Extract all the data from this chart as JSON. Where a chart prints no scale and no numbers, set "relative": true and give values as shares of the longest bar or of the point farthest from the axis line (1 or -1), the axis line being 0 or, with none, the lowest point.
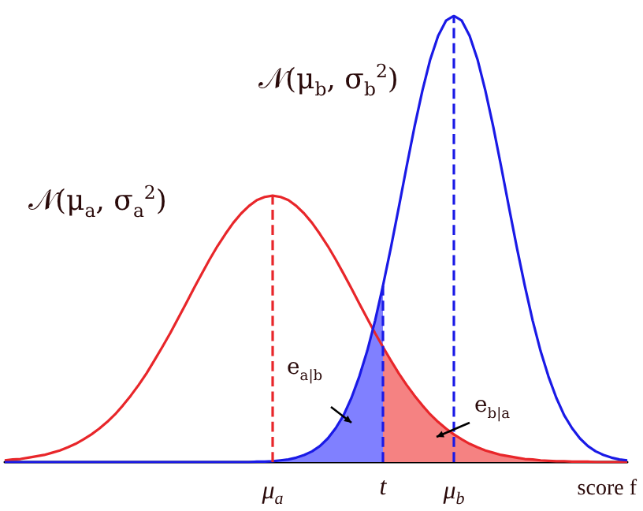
{
  "chart_data": {
    "type": "line",
    "relative": true,
    "categories": [
      null,
      null,
      null,
      null,
      null,
      null,
      null,
      null,
      null,
      null,
      null,
      null,
      null,
      null,
      null,
      null,
      null,
      null,
      null,
      null,
      null,
      null,
      null,
      null,
      null,
      null,
      null,
      null,
      null,
      null,
      null,
      null,
      null,
      null,
      "μ$_{a}$",
      null,
      null,
      null,
      null,
      null,
      null,
      null,
      null,
      null,
      null,
      null,
      null,
      null,
      "t",
      null,
      null,
      null,
      null,
      null,
      null,
      null,
      null,
      "μ$_{b}$",
      null,
      null,
      null,
      null,
      null,
      null,
      null,
      null,
      null,
      null,
      null,
      null,
      null,
      null,
      null,
      null,
      null,
      null,
      null,
      null,
      null,
      null
    ],
    "xlabel": "score f",
    "series": [
      {
        "color": "#e8262a",
        "values": [
          0.004,
          0.006,
          0.007,
          0.01,
          0.013,
          0.016,
          0.021,
          0.026,
          0.033,
          0.041,
          0.051,
          0.062,
          0.075,
          0.09,
          0.107,
          0.127,
          0.149,
          0.173,
          0.199,
          0.228,
          0.258,
          0.289,
          0.322,
          0.355,
          0.389,
          0.422,
          0.454,
          0.484,
          0.511,
          0.536,
          0.557,
          0.574,
          0.587,
          0.594,
          0.597,
          0.594,
          0.587,
          0.574,
          0.557,
          0.536,
          0.511,
          0.484,
          0.454,
          0.422,
          0.389,
          0.355,
          0.322,
          0.289,
          0.258,
          0.228,
          0.199,
          0.173,
          0.149,
          0.127,
          0.107,
          0.09,
          0.075,
          0.062,
          0.051,
          0.041,
          0.033,
          0.026,
          0.021,
          0.016,
          0.013,
          0.01,
          0.007,
          0.006,
          0.004,
          0.003,
          0.002,
          0.002,
          0.001,
          0.001,
          0.001,
          0,
          0,
          0,
          0,
          0
        ]
      },
      {
        "color": "#1a1ae6",
        "values": [
          0,
          0,
          0,
          0,
          0,
          0,
          0,
          0,
          0,
          0,
          0,
          0,
          0,
          0,
          0,
          0,
          0,
          0,
          0,
          0,
          0,
          0,
          0,
          0,
          0,
          0,
          0,
          0,
          0,
          0,
          0,
          0,
          0.001,
          0.001,
          0.002,
          0.004,
          0.006,
          0.01,
          0.016,
          0.024,
          0.036,
          0.053,
          0.076,
          0.105,
          0.144,
          0.192,
          0.249,
          0.317,
          0.395,
          0.48,
          0.57,
          0.662,
          0.751,
          0.832,
          0.902,
          0.955,
          0.989,
          1,
          0.989,
          0.955,
          0.902,
          0.832,
          0.751,
          0.662,
          0.57,
          0.48,
          0.395,
          0.317,
          0.249,
          0.192,
          0.144,
          0.105,
          0.076,
          0.053,
          0.036,
          0.024,
          0.016,
          0.01,
          0.006,
          0.004
        ]
      },
      {
        "type": "area",
        "color": "#8080ff",
        "values": [
          null,
          null,
          null,
          null,
          null,
          null,
          null,
          null,
          null,
          null,
          null,
          null,
          null,
          null,
          null,
          null,
          null,
          null,
          null,
          null,
          null,
          null,
          null,
          null,
          null,
          null,
          null,
          null,
          null,
          null,
          null,
          null,
          null,
          null,
          0.002,
          0.004,
          0.006,
          0.01,
          0.016,
          0.024,
          0.036,
          0.053,
          0.076,
          0.105,
          0.144,
          0.192,
          0.249,
          0.317,
          0.395,
          null,
          null,
          null,
          null,
          null,
          null,
          null,
          null,
          null,
          null,
          null,
          null,
          null,
          null,
          null,
          null,
          null,
          null,
          null,
          null,
          null,
          null,
          null,
          null,
          null,
          null,
          null,
          null,
          null,
          null,
          null
        ]
      },
      {
        "type": "area",
        "color": "#f58282",
        "values": [
          null,
          null,
          null,
          null,
          null,
          null,
          null,
          null,
          null,
          null,
          null,
          null,
          null,
          null,
          null,
          null,
          null,
          null,
          null,
          null,
          null,
          null,
          null,
          null,
          null,
          null,
          null,
          null,
          null,
          null,
          null,
          null,
          null,
          null,
          null,
          null,
          null,
          null,
          null,
          null,
          null,
          null,
          null,
          null,
          null,
          null,
          null,
          null,
          0.258,
          0.228,
          0.199,
          0.173,
          0.149,
          0.127,
          0.107,
          0.09,
          0.075,
          0.062,
          0.051,
          0.041,
          0.033,
          0.026,
          0.021,
          0.016,
          0.013,
          0.01,
          0.007,
          0.006,
          0.004,
          0.003,
          0.002,
          0.002,
          0.001,
          0.001,
          0.001,
          0,
          0,
          0,
          0,
          0
        ]
      }
    ],
    "ref_lines": [
      {
        "axis": "x",
        "value": "μ$_{a}$",
        "color": "#e8262a",
        "line_style": "dashed"
      },
      {
        "axis": "x",
        "value": "t",
        "color": "#1a1ae6",
        "line_style": "dashed"
      },
      {
        "axis": "x",
        "value": "μ$_{b}$",
        "color": "#1a1ae6",
        "line_style": "dashed"
      }
    ],
    "annotations": [
      "𝒩(μ$_{a}$, σ$_{a}$$^{2}$)",
      "𝒩(μ$_{b}$, σ$_{b}$$^{2}$)",
      "e$_{a|b}$",
      "e$_{b|a}$"
    ]
  }
}
